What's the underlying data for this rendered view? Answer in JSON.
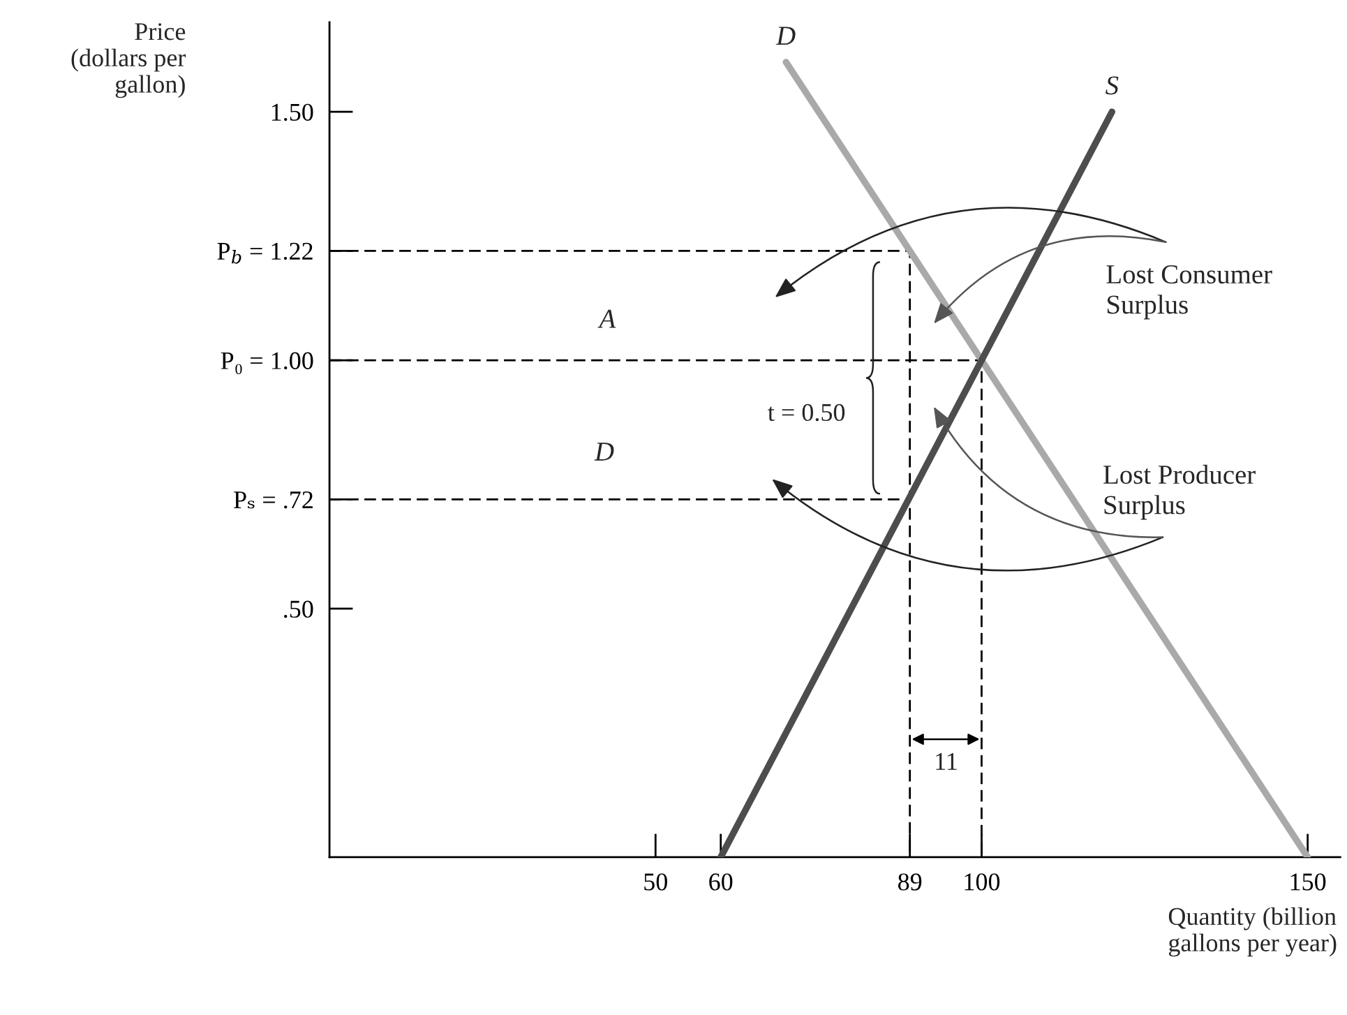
{
  "chart_data": {
    "type": "line",
    "xlabel": "Quantity (billion\ngallons per year)",
    "ylabel": "Price\n(dollars per\ngallon)",
    "xlim": [
      0,
      155
    ],
    "ylim": [
      0,
      1.68
    ],
    "xticks": [
      50,
      60,
      89,
      100,
      150
    ],
    "yticks": [
      {
        "value": 0.5,
        "label": ".50"
      },
      {
        "value": 0.72,
        "label": "Pₛ = .72"
      },
      {
        "value": 1.0,
        "label": "P₀ = 1.00"
      },
      {
        "value": 1.22,
        "label": "P$_{b}$ = 1.22"
      },
      {
        "value": 1.5,
        "label": "1.50"
      }
    ],
    "series": [
      {
        "name": "D",
        "color": "#a9a9a9",
        "line_style": "solid",
        "x": [
          70,
          150
        ],
        "values": [
          1.6,
          0
        ]
      },
      {
        "name": "S",
        "color": "#4d4d4d",
        "line_style": "solid",
        "x": [
          60,
          120
        ],
        "values": [
          0,
          1.5
        ]
      },
      {
        "color": "#000000",
        "line_style": "dashed",
        "x": [
          0,
          89,
          89
        ],
        "values": [
          1.22,
          1.22,
          0
        ]
      },
      {
        "color": "#000000",
        "line_style": "dashed",
        "x": [
          0,
          100,
          100
        ],
        "values": [
          1.0,
          1.0,
          0
        ]
      },
      {
        "color": "#000000",
        "line_style": "dashed",
        "x": [
          0,
          89
        ],
        "values": [
          0.72,
          0.72
        ]
      }
    ],
    "annotations": [
      "A",
      "D",
      "t = 0.50",
      "11",
      "Lost Consumer\nSurplus",
      "Lost Producer\nSurplus"
    ]
  }
}
